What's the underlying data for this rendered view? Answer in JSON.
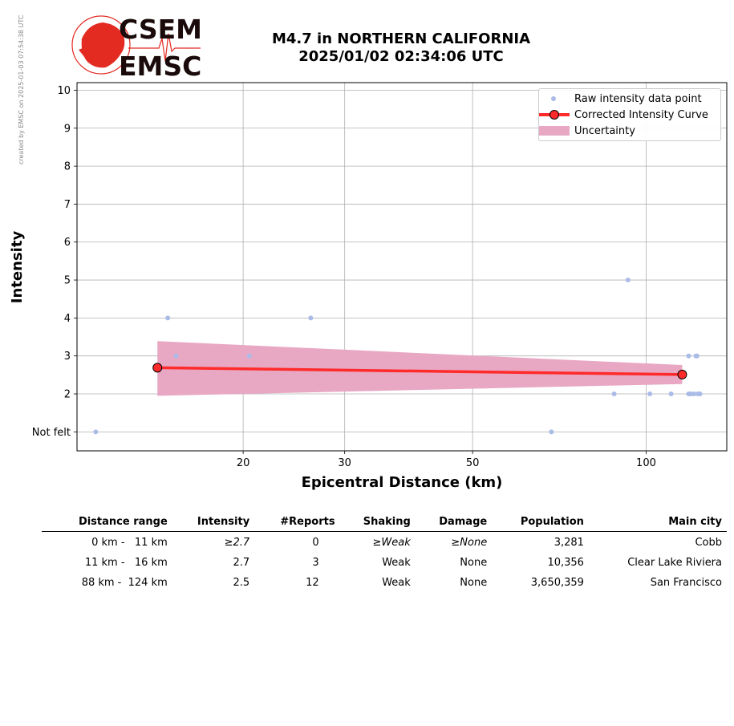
{
  "watermark": "created by EMSC on 2025-01-03 07:54:38 UTC",
  "logo": {
    "top_text": "CSEM",
    "bottom_text": "EMSC",
    "colors": {
      "red": "#e32b22",
      "dark": "#1a0a0a"
    }
  },
  "title": {
    "line1": "M4.7 in NORTHERN CALIFORNIA",
    "line2": "2025/01/02 02:34:06 UTC"
  },
  "chart_data": {
    "type": "scatter",
    "xlabel": "Epicentral Distance (km)",
    "ylabel": "Intensity",
    "x_scale": "log",
    "xlim": [
      10.3,
      138
    ],
    "ylim": [
      0.5,
      10.2
    ],
    "x_ticks": [
      20,
      30,
      50,
      100
    ],
    "y_ticks": [
      1,
      2,
      3,
      4,
      5,
      6,
      7,
      8,
      9,
      10
    ],
    "y_tick_labels": [
      "Not felt",
      "2",
      "3",
      "4",
      "5",
      "6",
      "7",
      "8",
      "9",
      "10"
    ],
    "grid": true,
    "legend_position": "top-right",
    "series": [
      {
        "name": "Raw intensity data point",
        "kind": "scatter",
        "color": "#aabbe8",
        "points": [
          [
            11.1,
            1
          ],
          [
            14.8,
            4
          ],
          [
            15.3,
            3
          ],
          [
            20.5,
            3
          ],
          [
            26.2,
            4
          ],
          [
            68.5,
            1
          ],
          [
            88.0,
            2
          ],
          [
            93.0,
            5
          ],
          [
            101.5,
            2
          ],
          [
            110.5,
            2
          ],
          [
            118.5,
            3
          ],
          [
            118.5,
            2
          ],
          [
            119.5,
            2
          ],
          [
            121,
            2
          ],
          [
            122,
            3
          ],
          [
            122.5,
            3
          ],
          [
            123,
            2
          ],
          [
            124,
            2
          ]
        ]
      },
      {
        "name": "Corrected Intensity Curve",
        "kind": "line",
        "color": "#ff2a2a",
        "marker_edge": "#000000",
        "points": [
          [
            14.2,
            2.69
          ],
          [
            115.5,
            2.51
          ]
        ]
      },
      {
        "name": "Uncertainty",
        "kind": "band",
        "color": "#e8a8c4",
        "upper": [
          [
            14.2,
            3.39
          ],
          [
            115.5,
            2.76
          ]
        ],
        "lower": [
          [
            14.2,
            1.95
          ],
          [
            115.5,
            2.26
          ]
        ]
      }
    ]
  },
  "table": {
    "headers": [
      "Distance range",
      "Intensity",
      "#Reports",
      "Shaking",
      "Damage",
      "Population",
      "Main city"
    ],
    "rows": [
      {
        "distance": "0 km -   11 km",
        "intensity": "≥2.7",
        "reports": "0",
        "shaking": "≥Weak",
        "damage": "≥None",
        "population": "3,281",
        "city": "Cobb"
      },
      {
        "distance": "11 km -   16 km",
        "intensity": "2.7",
        "reports": "3",
        "shaking": "Weak",
        "damage": "None",
        "population": "10,356",
        "city": "Clear Lake Riviera"
      },
      {
        "distance": "88 km -  124 km",
        "intensity": "2.5",
        "reports": "12",
        "shaking": "Weak",
        "damage": "None",
        "population": "3,650,359",
        "city": "San Francisco"
      }
    ]
  }
}
